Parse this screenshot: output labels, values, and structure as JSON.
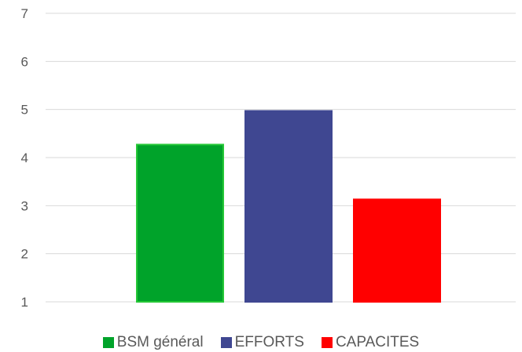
{
  "chart_data": {
    "type": "bar",
    "title": "",
    "xlabel": "",
    "ylabel": "",
    "ylim": [
      1,
      7
    ],
    "yticks": [
      "1",
      "2",
      "3",
      "4",
      "5",
      "6",
      "7"
    ],
    "grid": true,
    "legend_position": "bottom",
    "series": [
      {
        "name": "BSM général",
        "value": 4.27,
        "color": "#00A32A",
        "stroke": "#26C837"
      },
      {
        "name": "EFFORTS",
        "value": 4.97,
        "color": "#3F4791",
        "stroke": "#3F4791"
      },
      {
        "name": "CAPACITES",
        "value": 3.13,
        "color": "#FF0000",
        "stroke": "#FF0000"
      }
    ],
    "colors": {
      "grid": "#D9D9D9",
      "text": "#595959"
    }
  }
}
